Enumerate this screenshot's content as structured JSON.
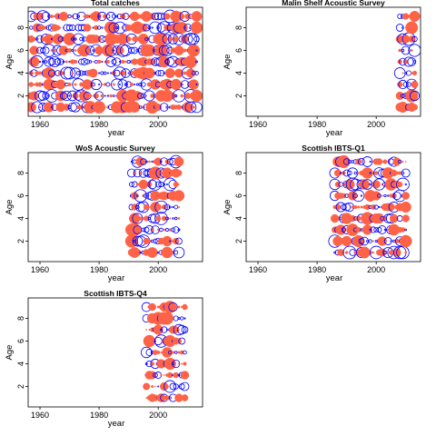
{
  "chart_data": [
    {
      "type": "scatter",
      "title": "Total catches",
      "xlabel": "year",
      "ylabel": "Age",
      "xlim": [
        1956,
        2015
      ],
      "ylim": [
        0.2,
        9.8
      ],
      "xticks": [
        1960,
        1980,
        2000
      ],
      "yticks": [
        2,
        4,
        6,
        8
      ],
      "year_range": [
        1957,
        2013
      ],
      "ages": [
        1,
        2,
        3,
        4,
        5,
        6,
        7,
        8,
        9
      ],
      "marker_colors": {
        "positive_residual": "#ff6347",
        "negative_residual": "#0000ff"
      }
    },
    {
      "type": "scatter",
      "title": "Malin Shelf Acoustic Survey",
      "xlabel": "year",
      "ylabel": "Age",
      "xlim": [
        1956,
        2015
      ],
      "ylim": [
        0.2,
        9.8
      ],
      "xticks": [
        1960,
        1980,
        2000
      ],
      "yticks": [
        2,
        4,
        6,
        8
      ],
      "year_range": [
        2008,
        2013
      ],
      "ages": [
        1,
        2,
        3,
        4,
        5,
        6,
        7,
        8,
        9
      ],
      "marker_colors": {
        "positive_residual": "#ff6347",
        "negative_residual": "#0000ff"
      }
    },
    {
      "type": "scatter",
      "title": "WoS Acoustic Survey",
      "xlabel": "year",
      "ylabel": "Age",
      "xlim": [
        1956,
        2015
      ],
      "ylim": [
        0.2,
        9.8
      ],
      "xticks": [
        1960,
        1980,
        2000
      ],
      "yticks": [
        2,
        4,
        6,
        8
      ],
      "year_range": [
        1991,
        2007
      ],
      "ages": [
        1,
        2,
        3,
        4,
        5,
        6,
        7,
        8,
        9
      ],
      "marker_colors": {
        "positive_residual": "#ff6347",
        "negative_residual": "#0000ff"
      }
    },
    {
      "type": "scatter",
      "title": "Scottish IBTS-Q1",
      "xlabel": "year",
      "ylabel": "Age",
      "xlim": [
        1956,
        2015
      ],
      "ylim": [
        0.2,
        9.8
      ],
      "xticks": [
        1960,
        1980,
        2000
      ],
      "yticks": [
        2,
        4,
        6,
        8
      ],
      "year_range": [
        1986,
        2010
      ],
      "ages": [
        1,
        2,
        3,
        4,
        5,
        6,
        7,
        8,
        9
      ],
      "marker_colors": {
        "positive_residual": "#ff6347",
        "negative_residual": "#0000ff"
      }
    },
    {
      "type": "scatter",
      "title": "Scottish IBTS-Q4",
      "xlabel": "year",
      "ylabel": "Age",
      "xlim": [
        1956,
        2015
      ],
      "ylim": [
        0.2,
        9.8
      ],
      "xticks": [
        1960,
        1980,
        2000
      ],
      "yticks": [
        2,
        4,
        6,
        8
      ],
      "year_range": [
        1996,
        2009
      ],
      "ages": [
        1,
        2,
        3,
        4,
        5,
        6,
        7,
        8,
        9
      ],
      "marker_colors": {
        "positive_residual": "#ff6347",
        "negative_residual": "#0000ff"
      }
    }
  ]
}
